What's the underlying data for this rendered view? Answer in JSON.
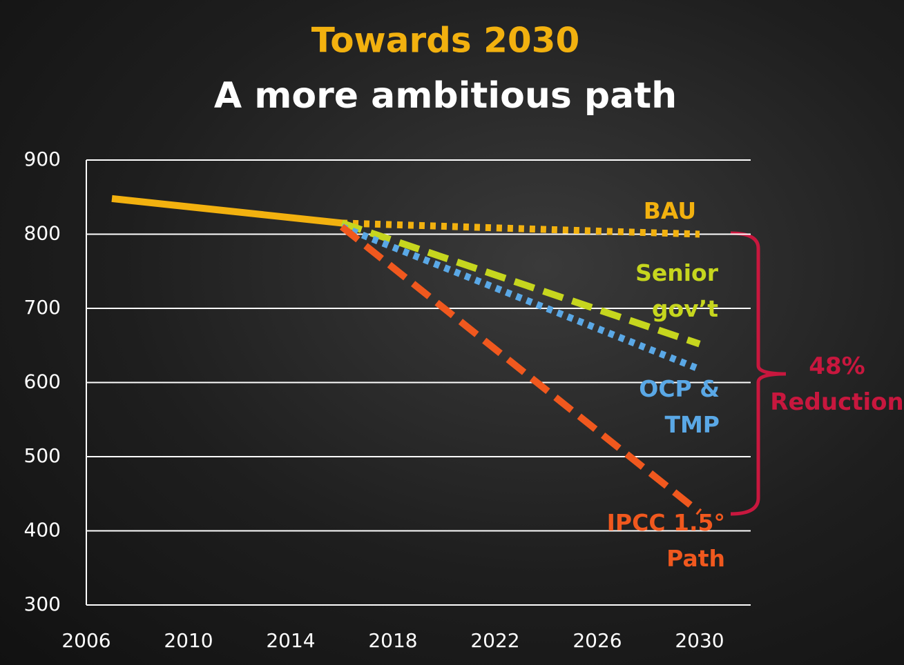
{
  "chart_data": {
    "type": "line",
    "title": "Towards 2030",
    "subtitle": "A more ambitious path",
    "xlim": [
      2006,
      2032
    ],
    "xticks": [
      2006,
      2010,
      2014,
      2018,
      2022,
      2026,
      2030
    ],
    "ylim": [
      300,
      900
    ],
    "yticks": [
      300,
      400,
      500,
      600,
      700,
      800,
      900
    ],
    "grid": true,
    "series": [
      {
        "color": "#f2b10f",
        "style": "solid",
        "x": [
          2007,
          2016
        ],
        "values": [
          848,
          815
        ]
      },
      {
        "name": "BAU",
        "color": "#f2b10f",
        "style": "dotted",
        "x": [
          2016,
          2030
        ],
        "values": [
          815,
          800
        ]
      },
      {
        "name": "Senior gov’t",
        "color": "#c6d61e",
        "style": "dashed",
        "x": [
          2016,
          2030
        ],
        "values": [
          815,
          652
        ]
      },
      {
        "name": "OCP & TMP",
        "color": "#5aa8e6",
        "style": "dotted",
        "x": [
          2016,
          2030
        ],
        "values": [
          810,
          618
        ]
      },
      {
        "name": "IPCC 1.5° Path",
        "color": "#f0581e",
        "style": "dashed",
        "x": [
          2016,
          2030
        ],
        "values": [
          810,
          425
        ]
      }
    ],
    "annotation": "48% Reduction",
    "annotation_color": "#c8173e"
  }
}
